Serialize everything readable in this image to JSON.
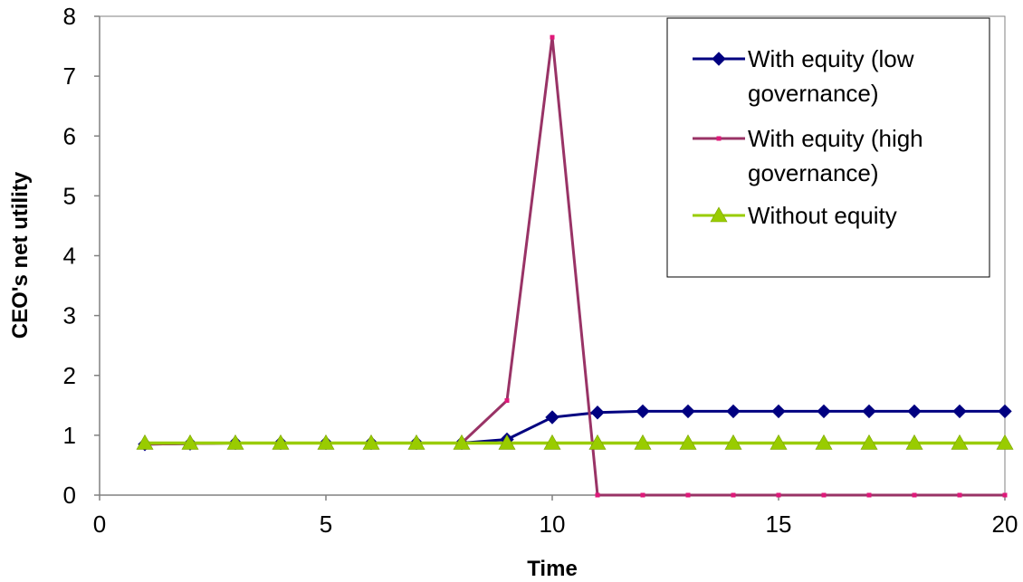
{
  "chart_data": {
    "type": "line",
    "title": "",
    "xlabel": "Time",
    "ylabel": "CEO's net utility",
    "xlim": [
      0,
      20
    ],
    "ylim": [
      0,
      8
    ],
    "xticks": [
      0,
      5,
      10,
      15,
      20
    ],
    "yticks": [
      0,
      1,
      2,
      3,
      4,
      5,
      6,
      7,
      8
    ],
    "grid": false,
    "legend_position": "top-right",
    "series": [
      {
        "name": "With equity (low governance)",
        "name_lines": [
          "With equity (low",
          "governance)"
        ],
        "color": "#000080",
        "marker": "diamond",
        "x": [
          1,
          2,
          3,
          4,
          5,
          6,
          7,
          8,
          9,
          10,
          11,
          12,
          13,
          14,
          15,
          16,
          17,
          18,
          19,
          20
        ],
        "y": [
          0.85,
          0.86,
          0.87,
          0.87,
          0.87,
          0.87,
          0.87,
          0.87,
          0.93,
          1.3,
          1.38,
          1.4,
          1.4,
          1.4,
          1.4,
          1.4,
          1.4,
          1.4,
          1.4,
          1.4
        ]
      },
      {
        "name": "With equity (high governance)",
        "name_lines": [
          "With equity (high",
          "governance)"
        ],
        "color": "#993366",
        "marker": "square",
        "x": [
          1,
          2,
          3,
          4,
          5,
          6,
          7,
          8,
          9,
          10,
          11,
          12,
          13,
          14,
          15,
          16,
          17,
          18,
          19,
          20
        ],
        "y": [
          0.85,
          0.86,
          0.87,
          0.87,
          0.87,
          0.87,
          0.87,
          0.87,
          1.58,
          7.65,
          0,
          0,
          0,
          0,
          0,
          0,
          0,
          0,
          0,
          0
        ]
      },
      {
        "name": "Without equity",
        "name_lines": [
          "Without equity"
        ],
        "color": "#99CC00",
        "marker": "triangle",
        "x": [
          1,
          2,
          3,
          4,
          5,
          6,
          7,
          8,
          9,
          10,
          11,
          12,
          13,
          14,
          15,
          16,
          17,
          18,
          19,
          20
        ],
        "y": [
          0.87,
          0.87,
          0.87,
          0.87,
          0.87,
          0.87,
          0.87,
          0.87,
          0.87,
          0.87,
          0.87,
          0.87,
          0.87,
          0.87,
          0.87,
          0.87,
          0.87,
          0.87,
          0.87,
          0.87
        ]
      }
    ]
  }
}
